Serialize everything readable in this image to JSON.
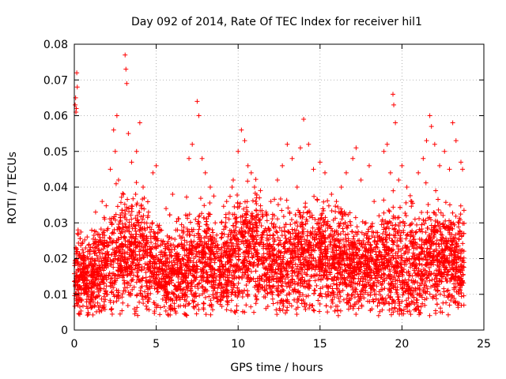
{
  "chart_data": {
    "type": "scatter",
    "title": "Day 092 of 2014, Rate Of TEC Index for receiver hil1",
    "xlabel": "GPS time / hours",
    "ylabel": "ROTI / TECUs",
    "xlim": [
      0,
      25
    ],
    "ylim": [
      0,
      0.08
    ],
    "xticks": [
      0,
      5,
      10,
      15,
      20,
      25
    ],
    "yticks": [
      0,
      0.01,
      0.02,
      0.03,
      0.04,
      0.05,
      0.06,
      0.07,
      0.08
    ],
    "xtick_labels": [
      "0",
      "5",
      "10",
      "15",
      "20",
      "25"
    ],
    "ytick_labels": [
      "0",
      "0.01",
      "0.02",
      "0.03",
      "0.04",
      "0.05",
      "0.06",
      "0.07",
      "0.08"
    ],
    "grid": true,
    "marker": "+",
    "color": "#ff0000",
    "envelope_note": "dense cloud; estimated upper envelope per hour",
    "series": [
      {
        "name": "hil1",
        "points": [
          [
            0.05,
            0.063
          ],
          [
            0.08,
            0.065
          ],
          [
            0.1,
            0.061
          ],
          [
            0.12,
            0.062
          ],
          [
            0.15,
            0.072
          ],
          [
            0.18,
            0.068
          ],
          [
            0.2,
            0.027
          ],
          [
            0.3,
            0.015
          ],
          [
            0.5,
            0.02
          ],
          [
            0.7,
            0.012
          ],
          [
            0.9,
            0.024
          ],
          [
            1.1,
            0.01
          ],
          [
            1.3,
            0.033
          ],
          [
            1.5,
            0.018
          ],
          [
            1.7,
            0.036
          ],
          [
            2.0,
            0.028
          ],
          [
            2.2,
            0.045
          ],
          [
            2.4,
            0.056
          ],
          [
            2.5,
            0.05
          ],
          [
            2.6,
            0.06
          ],
          [
            2.7,
            0.042
          ],
          [
            3.0,
            0.038
          ],
          [
            3.1,
            0.077
          ],
          [
            3.15,
            0.073
          ],
          [
            3.2,
            0.069
          ],
          [
            3.3,
            0.055
          ],
          [
            3.5,
            0.047
          ],
          [
            3.8,
            0.05
          ],
          [
            4.0,
            0.058
          ],
          [
            4.2,
            0.04
          ],
          [
            4.5,
            0.032
          ],
          [
            4.8,
            0.044
          ],
          [
            5.0,
            0.046
          ],
          [
            5.3,
            0.025
          ],
          [
            5.6,
            0.034
          ],
          [
            6.0,
            0.038
          ],
          [
            6.3,
            0.028
          ],
          [
            6.6,
            0.02
          ],
          [
            7.0,
            0.048
          ],
          [
            7.2,
            0.052
          ],
          [
            7.5,
            0.064
          ],
          [
            7.6,
            0.06
          ],
          [
            7.8,
            0.048
          ],
          [
            8.0,
            0.044
          ],
          [
            8.3,
            0.04
          ],
          [
            8.6,
            0.03
          ],
          [
            9.0,
            0.026
          ],
          [
            9.3,
            0.036
          ],
          [
            9.7,
            0.042
          ],
          [
            10.0,
            0.05
          ],
          [
            10.2,
            0.056
          ],
          [
            10.4,
            0.053
          ],
          [
            10.6,
            0.046
          ],
          [
            10.8,
            0.044
          ],
          [
            11.0,
            0.04
          ],
          [
            11.3,
            0.037
          ],
          [
            11.7,
            0.033
          ],
          [
            12.0,
            0.036
          ],
          [
            12.4,
            0.042
          ],
          [
            12.7,
            0.046
          ],
          [
            13.0,
            0.052
          ],
          [
            13.3,
            0.048
          ],
          [
            13.6,
            0.04
          ],
          [
            13.8,
            0.051
          ],
          [
            14.0,
            0.059
          ],
          [
            14.3,
            0.052
          ],
          [
            14.6,
            0.045
          ],
          [
            15.0,
            0.047
          ],
          [
            15.3,
            0.044
          ],
          [
            15.7,
            0.038
          ],
          [
            16.0,
            0.036
          ],
          [
            16.3,
            0.04
          ],
          [
            16.6,
            0.044
          ],
          [
            17.0,
            0.048
          ],
          [
            17.2,
            0.051
          ],
          [
            17.5,
            0.042
          ],
          [
            17.8,
            0.03
          ],
          [
            18.0,
            0.046
          ],
          [
            18.3,
            0.036
          ],
          [
            18.6,
            0.032
          ],
          [
            18.9,
            0.05
          ],
          [
            19.1,
            0.052
          ],
          [
            19.3,
            0.044
          ],
          [
            19.45,
            0.066
          ],
          [
            19.5,
            0.063
          ],
          [
            19.6,
            0.058
          ],
          [
            19.8,
            0.042
          ],
          [
            20.0,
            0.046
          ],
          [
            20.3,
            0.04
          ],
          [
            20.6,
            0.036
          ],
          [
            21.0,
            0.044
          ],
          [
            21.3,
            0.048
          ],
          [
            21.5,
            0.053
          ],
          [
            21.7,
            0.06
          ],
          [
            21.8,
            0.057
          ],
          [
            22.0,
            0.052
          ],
          [
            22.3,
            0.046
          ],
          [
            22.6,
            0.05
          ],
          [
            22.9,
            0.045
          ],
          [
            23.1,
            0.058
          ],
          [
            23.3,
            0.053
          ],
          [
            23.6,
            0.047
          ],
          [
            23.7,
            0.045
          ]
        ]
      }
    ],
    "density_profile": {
      "hours": [
        0,
        1,
        2,
        3,
        4,
        5,
        6,
        7,
        8,
        9,
        10,
        11,
        12,
        13,
        14,
        15,
        16,
        17,
        18,
        19,
        20,
        21,
        22,
        23,
        23.8
      ],
      "mean": [
        0.016,
        0.015,
        0.018,
        0.022,
        0.021,
        0.017,
        0.016,
        0.018,
        0.02,
        0.017,
        0.022,
        0.024,
        0.019,
        0.018,
        0.021,
        0.022,
        0.02,
        0.019,
        0.018,
        0.02,
        0.017,
        0.019,
        0.021,
        0.02,
        0.019
      ],
      "spread": [
        0.006,
        0.007,
        0.009,
        0.01,
        0.01,
        0.008,
        0.008,
        0.009,
        0.009,
        0.008,
        0.01,
        0.01,
        0.009,
        0.009,
        0.009,
        0.009,
        0.009,
        0.009,
        0.008,
        0.01,
        0.01,
        0.009,
        0.01,
        0.009,
        0.009
      ],
      "sample_count": 5200
    }
  }
}
